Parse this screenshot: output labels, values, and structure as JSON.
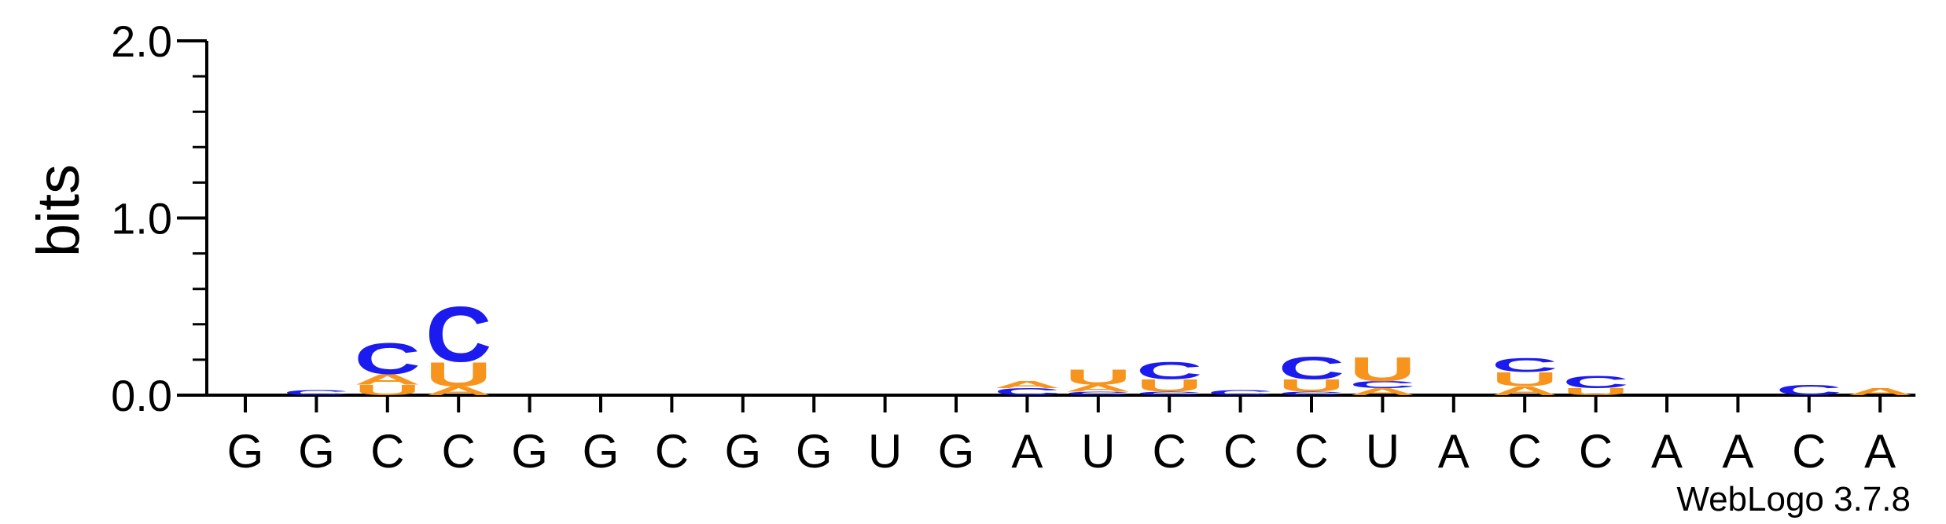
{
  "chart_data": {
    "type": "sequence-logo",
    "ylabel": "bits",
    "ylim": [
      0,
      2.0
    ],
    "yticks": [
      "0.0",
      "1.0",
      "2.0"
    ],
    "footer": "WebLogo 3.7.8",
    "colors": {
      "A": "#f7941d",
      "U": "#f7941d",
      "C": "#1b1bf0",
      "G": "#1b1bf0"
    },
    "positions": [
      {
        "consensus": "G",
        "stack": []
      },
      {
        "consensus": "G",
        "stack": [
          {
            "letter": "C",
            "bits": 0.03
          }
        ]
      },
      {
        "consensus": "C",
        "stack": [
          {
            "letter": "U",
            "bits": 0.06
          },
          {
            "letter": "A",
            "bits": 0.06
          },
          {
            "letter": "C",
            "bits": 0.18
          }
        ]
      },
      {
        "consensus": "C",
        "stack": [
          {
            "letter": "A",
            "bits": 0.05
          },
          {
            "letter": "U",
            "bits": 0.14
          },
          {
            "letter": "C",
            "bits": 0.32
          }
        ]
      },
      {
        "consensus": "G",
        "stack": []
      },
      {
        "consensus": "G",
        "stack": []
      },
      {
        "consensus": "C",
        "stack": []
      },
      {
        "consensus": "G",
        "stack": []
      },
      {
        "consensus": "G",
        "stack": []
      },
      {
        "consensus": "U",
        "stack": []
      },
      {
        "consensus": "G",
        "stack": []
      },
      {
        "consensus": "A",
        "stack": [
          {
            "letter": "C",
            "bits": 0.04
          },
          {
            "letter": "A",
            "bits": 0.04
          }
        ]
      },
      {
        "consensus": "U",
        "stack": [
          {
            "letter": "C",
            "bits": 0.02
          },
          {
            "letter": "A",
            "bits": 0.04
          },
          {
            "letter": "U",
            "bits": 0.09
          }
        ]
      },
      {
        "consensus": "C",
        "stack": [
          {
            "letter": "C",
            "bits": 0.02
          },
          {
            "letter": "U",
            "bits": 0.07
          },
          {
            "letter": "C",
            "bits": 0.1
          }
        ]
      },
      {
        "consensus": "C",
        "stack": [
          {
            "letter": "C",
            "bits": 0.03
          }
        ]
      },
      {
        "consensus": "C",
        "stack": [
          {
            "letter": "C",
            "bits": 0.02
          },
          {
            "letter": "U",
            "bits": 0.07
          },
          {
            "letter": "C",
            "bits": 0.13
          }
        ]
      },
      {
        "consensus": "U",
        "stack": [
          {
            "letter": "A",
            "bits": 0.04
          },
          {
            "letter": "C",
            "bits": 0.04
          },
          {
            "letter": "U",
            "bits": 0.14
          }
        ]
      },
      {
        "consensus": "A",
        "stack": []
      },
      {
        "consensus": "C",
        "stack": [
          {
            "letter": "A",
            "bits": 0.05
          },
          {
            "letter": "U",
            "bits": 0.08
          },
          {
            "letter": "C",
            "bits": 0.08
          }
        ]
      },
      {
        "consensus": "C",
        "stack": [
          {
            "letter": "U",
            "bits": 0.04
          },
          {
            "letter": "C",
            "bits": 0.07
          }
        ]
      },
      {
        "consensus": "A",
        "stack": []
      },
      {
        "consensus": "A",
        "stack": []
      },
      {
        "consensus": "C",
        "stack": [
          {
            "letter": "C",
            "bits": 0.06
          }
        ]
      },
      {
        "consensus": "A",
        "stack": [
          {
            "letter": "A",
            "bits": 0.04
          }
        ]
      }
    ]
  }
}
